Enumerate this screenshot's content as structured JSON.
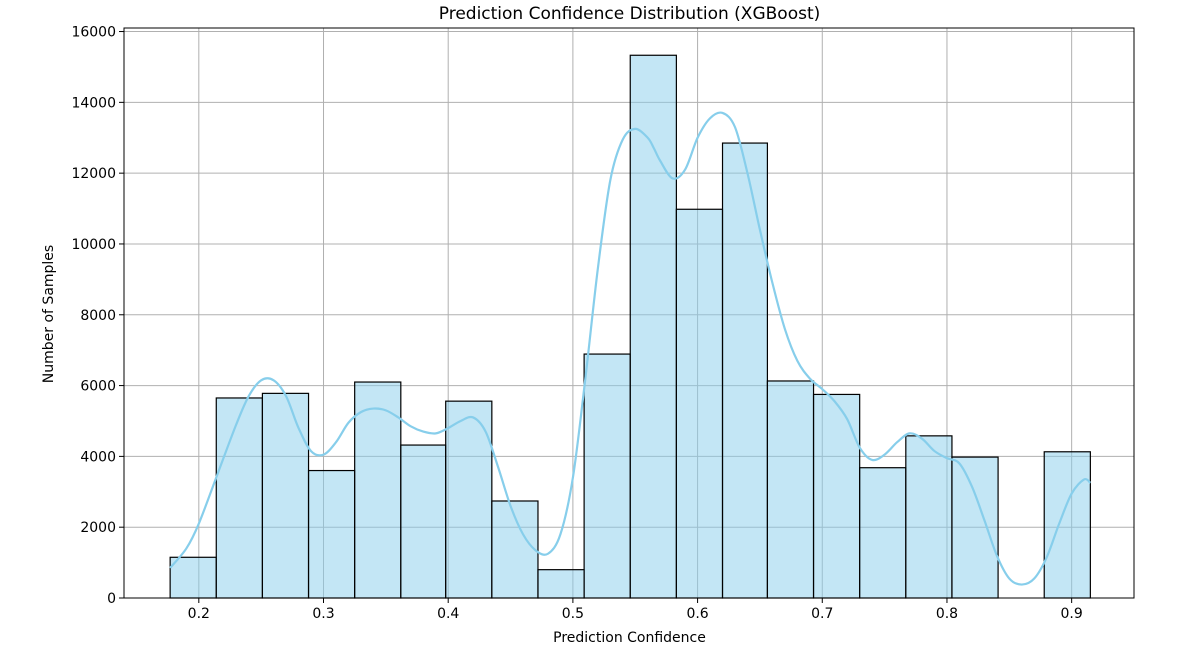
{
  "chart_data": {
    "type": "bar",
    "title": "Prediction Confidence Distribution (XGBoost)",
    "xlabel": "Prediction Confidence",
    "ylabel": "Number of Samples",
    "xlim": [
      0.14,
      0.95
    ],
    "ylim": [
      0,
      16100
    ],
    "xticks": [
      0.2,
      0.3,
      0.4,
      0.5,
      0.6,
      0.7,
      0.8,
      0.9
    ],
    "yticks": [
      0,
      2000,
      4000,
      6000,
      8000,
      10000,
      12000,
      14000,
      16000
    ],
    "grid": true,
    "bins": [
      {
        "x0": 0.177,
        "x1": 0.214,
        "count": 1150
      },
      {
        "x0": 0.214,
        "x1": 0.251,
        "count": 5650
      },
      {
        "x0": 0.251,
        "x1": 0.288,
        "count": 5780
      },
      {
        "x0": 0.288,
        "x1": 0.325,
        "count": 3600
      },
      {
        "x0": 0.325,
        "x1": 0.362,
        "count": 6100
      },
      {
        "x0": 0.362,
        "x1": 0.398,
        "count": 4320
      },
      {
        "x0": 0.398,
        "x1": 0.435,
        "count": 5560
      },
      {
        "x0": 0.435,
        "x1": 0.472,
        "count": 2740
      },
      {
        "x0": 0.472,
        "x1": 0.509,
        "count": 800
      },
      {
        "x0": 0.509,
        "x1": 0.546,
        "count": 6890
      },
      {
        "x0": 0.546,
        "x1": 0.583,
        "count": 15330
      },
      {
        "x0": 0.583,
        "x1": 0.62,
        "count": 10980
      },
      {
        "x0": 0.62,
        "x1": 0.656,
        "count": 12850
      },
      {
        "x0": 0.656,
        "x1": 0.693,
        "count": 6130
      },
      {
        "x0": 0.693,
        "x1": 0.73,
        "count": 5750
      },
      {
        "x0": 0.73,
        "x1": 0.767,
        "count": 3680
      },
      {
        "x0": 0.767,
        "x1": 0.804,
        "count": 4580
      },
      {
        "x0": 0.804,
        "x1": 0.841,
        "count": 3980
      },
      {
        "x0": 0.841,
        "x1": 0.878,
        "count": 0
      },
      {
        "x0": 0.878,
        "x1": 0.915,
        "count": 4130
      }
    ],
    "kde": {
      "x": [
        0.177,
        0.19,
        0.2,
        0.215,
        0.23,
        0.24,
        0.25,
        0.26,
        0.27,
        0.28,
        0.29,
        0.3,
        0.31,
        0.32,
        0.33,
        0.34,
        0.35,
        0.36,
        0.37,
        0.38,
        0.39,
        0.4,
        0.41,
        0.42,
        0.43,
        0.44,
        0.45,
        0.46,
        0.47,
        0.48,
        0.49,
        0.5,
        0.51,
        0.52,
        0.53,
        0.54,
        0.55,
        0.56,
        0.565,
        0.57,
        0.58,
        0.59,
        0.6,
        0.61,
        0.62,
        0.63,
        0.64,
        0.65,
        0.66,
        0.67,
        0.68,
        0.69,
        0.7,
        0.71,
        0.72,
        0.73,
        0.74,
        0.75,
        0.76,
        0.77,
        0.78,
        0.79,
        0.8,
        0.81,
        0.82,
        0.83,
        0.84,
        0.85,
        0.86,
        0.87,
        0.88,
        0.89,
        0.9,
        0.91,
        0.915
      ],
      "y": [
        850,
        1400,
        2100,
        3500,
        4900,
        5700,
        6150,
        6150,
        5700,
        4800,
        4150,
        4050,
        4400,
        4950,
        5250,
        5350,
        5300,
        5100,
        4850,
        4700,
        4650,
        4800,
        5000,
        5100,
        4700,
        3700,
        2600,
        1800,
        1350,
        1250,
        1800,
        3400,
        6200,
        9300,
        11800,
        12950,
        13250,
        13000,
        12700,
        12350,
        11850,
        12100,
        13000,
        13550,
        13700,
        13300,
        12000,
        10400,
        8900,
        7600,
        6700,
        6200,
        5900,
        5550,
        5050,
        4250,
        3900,
        4050,
        4400,
        4650,
        4500,
        4150,
        3950,
        3800,
        3150,
        2200,
        1200,
        550,
        380,
        550,
        1150,
        2100,
        2950,
        3350,
        3250
      ]
    }
  }
}
